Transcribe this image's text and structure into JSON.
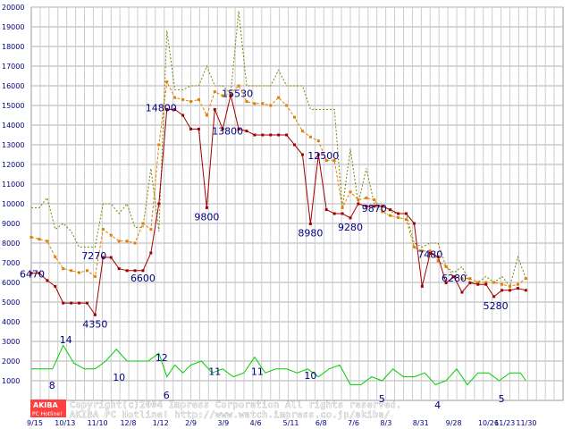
{
  "chart_data": {
    "type": "line",
    "title": "",
    "xlabel": "",
    "ylabel": "",
    "ylim": [
      0,
      20000
    ],
    "yticks": [
      1000,
      2000,
      3000,
      4000,
      5000,
      6000,
      7000,
      8000,
      9000,
      10000,
      11000,
      12000,
      13000,
      14000,
      15000,
      16000,
      17000,
      18000,
      19000,
      20000
    ],
    "xlim": [
      0,
      100
    ],
    "xticks": [
      {
        "x": 0,
        "label": "9/15"
      },
      {
        "x": 6.1,
        "label": "10/13"
      },
      {
        "x": 12.2,
        "label": "11/10"
      },
      {
        "x": 18.4,
        "label": "12/8"
      },
      {
        "x": 24.5,
        "label": "1/12"
      },
      {
        "x": 30.6,
        "label": "2/9"
      },
      {
        "x": 36.7,
        "label": "3/9"
      },
      {
        "x": 42.8,
        "label": "4/6"
      },
      {
        "x": 49.0,
        "label": "5/11"
      },
      {
        "x": 55.1,
        "label": "6/8"
      },
      {
        "x": 61.2,
        "label": "7/6"
      },
      {
        "x": 67.3,
        "label": "8/3"
      },
      {
        "x": 73.4,
        "label": "8/31"
      },
      {
        "x": 79.6,
        "label": "9/28"
      },
      {
        "x": 85.7,
        "label": "10/26"
      },
      {
        "x": 91.8,
        "label": "11/23"
      },
      {
        "x": 92.5,
        "label": "11/30"
      }
    ],
    "grid": true,
    "series": [
      {
        "color": "#808000",
        "style": "dotted",
        "x": [
          0,
          1.5,
          3,
          4.5,
          6,
          7.5,
          9,
          10.5,
          12,
          13.5,
          15,
          16.5,
          18,
          19.5,
          21,
          22.5,
          24,
          25.5,
          27,
          28.5,
          30,
          31.5,
          33,
          34.5,
          36,
          37.5,
          39,
          40.5,
          42,
          43.5,
          45,
          46.5,
          48,
          49.5,
          51,
          52.5,
          54,
          55.5,
          57,
          58.5,
          60,
          61.5,
          63,
          64.5,
          66,
          67.5,
          69,
          70.5,
          72,
          73.5,
          75,
          76.5,
          78,
          79.5,
          81,
          82.5,
          84,
          85.5,
          87,
          88.5,
          90,
          91.5,
          93
        ],
        "values": [
          9800,
          9800,
          10300,
          8700,
          9000,
          8600,
          7800,
          7800,
          7800,
          10000,
          10000,
          9500,
          10000,
          8800,
          8800,
          11800,
          8600,
          18800,
          15800,
          15800,
          16000,
          16000,
          17000,
          16000,
          16000,
          15600,
          19800,
          16000,
          16000,
          16000,
          16000,
          16800,
          16000,
          16000,
          16000,
          14800,
          14800,
          14800,
          14800,
          9800,
          12800,
          10000,
          11800,
          10000,
          10000,
          9600,
          9500,
          9500,
          8000,
          7800,
          8000,
          8000,
          6800,
          6500,
          6800,
          6000,
          6000,
          6300,
          6000,
          6300,
          5800,
          7300,
          6200
        ]
      },
      {
        "color": "#e08000",
        "style": "dashed",
        "x": [
          0,
          1.5,
          3,
          4.5,
          6,
          7.5,
          9,
          10.5,
          12,
          13.5,
          15,
          16.5,
          18,
          19.5,
          21,
          22.5,
          24,
          25.5,
          27,
          28.5,
          30,
          31.5,
          33,
          34.5,
          36,
          37.5,
          39,
          40.5,
          42,
          43.5,
          45,
          46.5,
          48,
          49.5,
          51,
          52.5,
          54,
          55.5,
          57,
          58.5,
          60,
          61.5,
          63,
          64.5,
          66,
          67.5,
          69,
          70.5,
          72,
          73.5,
          75,
          76.5,
          78,
          79.5,
          81,
          82.5,
          84,
          85.5,
          87,
          88.5,
          90,
          91.5,
          93
        ],
        "values": [
          8300,
          8200,
          8100,
          7300,
          6700,
          6600,
          6500,
          6600,
          6300,
          8700,
          8400,
          8100,
          8100,
          8000,
          9000,
          8700,
          13000,
          16200,
          15400,
          15300,
          15200,
          15300,
          14500,
          15700,
          15500,
          15600,
          16000,
          15200,
          15100,
          15100,
          15000,
          15400,
          15000,
          14400,
          13700,
          13400,
          13200,
          12200,
          12200,
          9800,
          10600,
          10200,
          10300,
          10200,
          9600,
          9400,
          9300,
          9200,
          7800,
          7600,
          7600,
          7100,
          6800,
          6300,
          6200,
          6200,
          6000,
          6000,
          6000,
          5900,
          5800,
          5900,
          6200
        ]
      },
      {
        "color": "#a00000",
        "style": "solid",
        "x": [
          0,
          1.5,
          3,
          4.5,
          6,
          7.5,
          9,
          10.5,
          12,
          13.5,
          15,
          16.5,
          18,
          19.5,
          21,
          22.5,
          24,
          25.5,
          27,
          28.5,
          30,
          31.5,
          33,
          34.5,
          36,
          37.5,
          39,
          40.5,
          42,
          43.5,
          45,
          46.5,
          48,
          49.5,
          51,
          52.5,
          54,
          55.5,
          57,
          58.5,
          60,
          61.5,
          63,
          64.5,
          66,
          67.5,
          69,
          70.5,
          72,
          73.5,
          75,
          76.5,
          78,
          79.5,
          81,
          82.5,
          84,
          85.5,
          87,
          88.5,
          90,
          91.5,
          93
        ],
        "values": [
          6470,
          6470,
          6100,
          5800,
          4950,
          4950,
          4950,
          4950,
          4350,
          7270,
          7270,
          6700,
          6600,
          6600,
          6600,
          7500,
          10000,
          14800,
          14800,
          14500,
          13800,
          13800,
          9800,
          14800,
          13800,
          15530,
          13800,
          13700,
          13500,
          13500,
          13500,
          13500,
          13500,
          13000,
          12500,
          8980,
          12500,
          9700,
          9500,
          9500,
          9280,
          10000,
          9870,
          9870,
          9870,
          9700,
          9500,
          9500,
          9000,
          5800,
          7480,
          7300,
          5980,
          6280,
          5500,
          5980,
          5900,
          5900,
          5280,
          5600,
          5600,
          5700,
          5600
        ]
      },
      {
        "color": "#00cc00",
        "style": "solid",
        "x": [
          0,
          2,
          4,
          6,
          8,
          10,
          12,
          14,
          16,
          18,
          20,
          22,
          24,
          25.5,
          27,
          28.5,
          30,
          32,
          34,
          36,
          38,
          40,
          42,
          44,
          46,
          48,
          50,
          52,
          54,
          56,
          58,
          60,
          62,
          64,
          66,
          68,
          70,
          72,
          74,
          76,
          78,
          80,
          82,
          84,
          86,
          88,
          90,
          92,
          93
        ],
        "values": [
          1600,
          1600,
          1600,
          2800,
          1900,
          1600,
          1600,
          2000,
          2600,
          2000,
          2000,
          2000,
          2400,
          1200,
          1800,
          1400,
          1800,
          2000,
          1400,
          1600,
          1200,
          1400,
          2200,
          1400,
          1600,
          1600,
          1400,
          1600,
          1200,
          1600,
          1800,
          800,
          800,
          1200,
          1000,
          1600,
          1200,
          1200,
          1400,
          800,
          1000,
          1600,
          800,
          1400,
          1400,
          1000,
          1400,
          1400,
          1000
        ]
      }
    ],
    "data_labels": [
      {
        "x": 0,
        "y": 6470,
        "text": "6470"
      },
      {
        "x": 12,
        "y": 4350,
        "text": "4350"
      },
      {
        "x": 13.5,
        "y": 7270,
        "text": "7270"
      },
      {
        "x": 21,
        "y": 6600,
        "text": "6600"
      },
      {
        "x": 25.5,
        "y": 14800,
        "text": "14800"
      },
      {
        "x": 33,
        "y": 9800,
        "text": "9800"
      },
      {
        "x": 36,
        "y": 13800,
        "text": "13800"
      },
      {
        "x": 37.5,
        "y": 15530,
        "text": "15530"
      },
      {
        "x": 52.5,
        "y": 8980,
        "text": "8980"
      },
      {
        "x": 54,
        "y": 12500,
        "text": "12500"
      },
      {
        "x": 60,
        "y": 9280,
        "text": "9280"
      },
      {
        "x": 64.5,
        "y": 9870,
        "text": "9870"
      },
      {
        "x": 75,
        "y": 7480,
        "text": "7480"
      },
      {
        "x": 79.5,
        "y": 6280,
        "text": "6280"
      },
      {
        "x": 87,
        "y": 5280,
        "text": "5280"
      }
    ],
    "count_labels": [
      {
        "x": 4,
        "y": 600,
        "text": "8"
      },
      {
        "x": 6,
        "y": 2900,
        "text": "14"
      },
      {
        "x": 16,
        "y": 1000,
        "text": "10"
      },
      {
        "x": 24,
        "y": 2000,
        "text": "12"
      },
      {
        "x": 25.5,
        "y": 100,
        "text": "6"
      },
      {
        "x": 34,
        "y": 1300,
        "text": "11"
      },
      {
        "x": 42,
        "y": 1300,
        "text": "11"
      },
      {
        "x": 52,
        "y": 1100,
        "text": "10"
      },
      {
        "x": 66,
        "y": -100,
        "text": "5"
      },
      {
        "x": 76.5,
        "y": -400,
        "text": "4"
      },
      {
        "x": 88.5,
        "y": -100,
        "text": "5"
      }
    ]
  },
  "watermark": {
    "logo_top": "AKIBA",
    "logo_bottom": "PC Hotline!",
    "line1": "Copyright(c)2004 Impress Corporation All rights reserved.",
    "line2": "AKIBA PC Hotline!  http://www.watch.impress.co.jp/akiba/"
  }
}
